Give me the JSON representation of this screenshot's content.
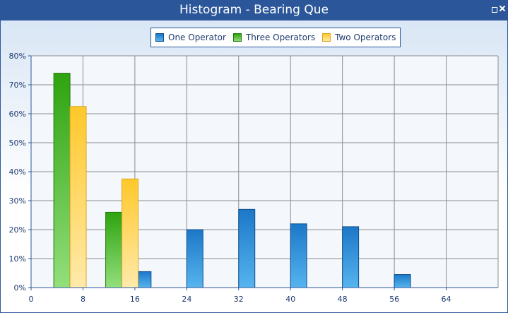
{
  "window": {
    "title": "Histogram - Bearing Que"
  },
  "colors": {
    "one_operator": "#1f86d6",
    "three_operators": "#37ad1e",
    "two_operators": "#ffcc33",
    "frame": "#2b579a"
  },
  "chart_data": {
    "type": "bar",
    "x_ticks": [
      0,
      8,
      16,
      24,
      32,
      40,
      48,
      56,
      64
    ],
    "y_ticks": [
      "0%",
      "10%",
      "20%",
      "30%",
      "40%",
      "50%",
      "60%",
      "70%",
      "80%"
    ],
    "xlim": [
      0,
      72
    ],
    "ylim": [
      0,
      80
    ],
    "grid": true,
    "legend_position": "top-center",
    "series": [
      {
        "name": "One Operator",
        "key": "one_operator",
        "bins": [
          [
            16,
            5.5
          ],
          [
            24,
            20
          ],
          [
            32,
            27
          ],
          [
            40,
            22
          ],
          [
            48,
            21
          ],
          [
            56,
            4.5
          ]
        ]
      },
      {
        "name": "Three Operators",
        "key": "three_operators",
        "bins": [
          [
            3.5,
            74
          ],
          [
            11.5,
            26
          ]
        ]
      },
      {
        "name": "Two Operators",
        "key": "two_operators",
        "bins": [
          [
            6,
            62.5
          ],
          [
            14,
            37.5
          ]
        ]
      }
    ],
    "bin_width": 2.5
  }
}
